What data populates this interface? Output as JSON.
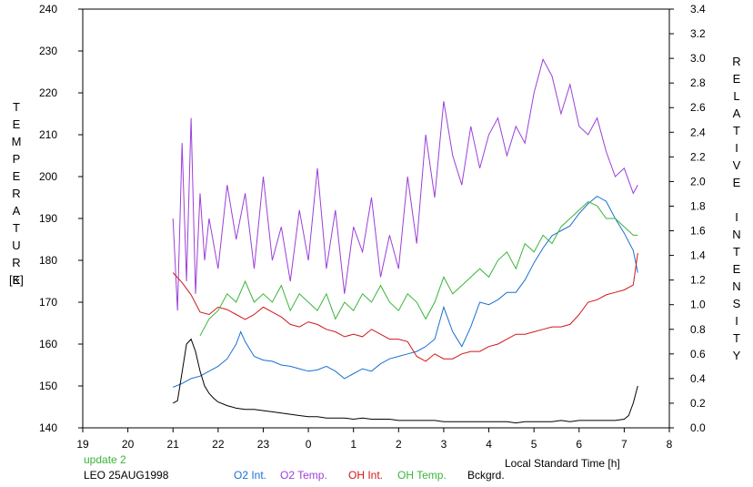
{
  "chart_data": {
    "type": "line",
    "xlabel": "Local Standard Time [h]",
    "ylabel_left": "TEMPERATURE",
    "ylabel_left_unit": "[K]",
    "ylabel_right": "RELATIVE INTENSITY",
    "x_ticks": [
      "19",
      "20",
      "21",
      "22",
      "23",
      "0",
      "1",
      "2",
      "3",
      "4",
      "5",
      "6",
      "7",
      "8"
    ],
    "xlim": [
      19,
      32
    ],
    "y_left_ticks": [
      "140",
      "150",
      "160",
      "170",
      "180",
      "190",
      "200",
      "210",
      "220",
      "230",
      "240"
    ],
    "ylim_left": [
      140,
      240
    ],
    "y_right_ticks": [
      "0.0",
      "0.2",
      "0.4",
      "0.6",
      "0.8",
      "1.0",
      "1.2",
      "1.4",
      "1.6",
      "1.8",
      "2.0",
      "2.2",
      "2.4",
      "2.6",
      "2.8",
      "3.0",
      "3.2",
      "3.4"
    ],
    "ylim_right": [
      0,
      3.4
    ],
    "series": [
      {
        "name": "O2 Int.",
        "axis": "right",
        "color": "#1a6fd0",
        "x": [
          21.0,
          21.2,
          21.4,
          21.6,
          21.8,
          22.0,
          22.2,
          22.4,
          22.5,
          22.6,
          22.8,
          23.0,
          23.2,
          23.4,
          23.6,
          23.8,
          24.0,
          24.2,
          24.4,
          24.6,
          24.8,
          25.0,
          25.2,
          25.4,
          25.6,
          25.8,
          26.0,
          26.2,
          26.4,
          26.6,
          26.8,
          27.0,
          27.2,
          27.4,
          27.6,
          27.8,
          28.0,
          28.2,
          28.4,
          28.6,
          28.8,
          29.0,
          29.2,
          29.4,
          29.6,
          29.8,
          30.0,
          30.2,
          30.4,
          30.6,
          30.8,
          31.0,
          31.2,
          31.3
        ],
        "values": [
          0.33,
          0.36,
          0.4,
          0.42,
          0.46,
          0.5,
          0.56,
          0.68,
          0.78,
          0.7,
          0.58,
          0.55,
          0.54,
          0.51,
          0.5,
          0.48,
          0.46,
          0.47,
          0.5,
          0.46,
          0.4,
          0.44,
          0.48,
          0.46,
          0.52,
          0.56,
          0.58,
          0.6,
          0.62,
          0.66,
          0.72,
          0.98,
          0.78,
          0.66,
          0.82,
          1.02,
          1.0,
          1.04,
          1.1,
          1.1,
          1.2,
          1.34,
          1.46,
          1.56,
          1.6,
          1.64,
          1.74,
          1.82,
          1.88,
          1.84,
          1.7,
          1.58,
          1.44,
          1.26
        ]
      },
      {
        "name": "O2 Temp.",
        "axis": "left",
        "color": "#9b3fd8",
        "x": [
          21.0,
          21.1,
          21.2,
          21.3,
          21.4,
          21.5,
          21.6,
          21.7,
          21.8,
          22.0,
          22.2,
          22.4,
          22.6,
          22.8,
          23.0,
          23.2,
          23.4,
          23.6,
          23.8,
          24.0,
          24.2,
          24.4,
          24.6,
          24.8,
          25.0,
          25.2,
          25.4,
          25.6,
          25.8,
          26.0,
          26.2,
          26.4,
          26.6,
          26.8,
          27.0,
          27.2,
          27.4,
          27.6,
          27.8,
          28.0,
          28.2,
          28.4,
          28.6,
          28.8,
          29.0,
          29.2,
          29.4,
          29.6,
          29.8,
          30.0,
          30.2,
          30.4,
          30.6,
          30.8,
          31.0,
          31.2,
          31.3
        ],
        "values": [
          190,
          168,
          208,
          175,
          214,
          172,
          196,
          180,
          190,
          178,
          198,
          185,
          196,
          178,
          200,
          180,
          188,
          175,
          192,
          180,
          202,
          178,
          192,
          172,
          188,
          182,
          195,
          176,
          186,
          178,
          200,
          184,
          210,
          195,
          218,
          205,
          198,
          212,
          202,
          210,
          214,
          205,
          212,
          208,
          220,
          228,
          224,
          215,
          222,
          212,
          210,
          214,
          206,
          200,
          202,
          196,
          198
        ]
      },
      {
        "name": "OH Int.",
        "axis": "right",
        "color": "#d01818",
        "x": [
          21.0,
          21.2,
          21.4,
          21.6,
          21.8,
          22.0,
          22.2,
          22.4,
          22.6,
          22.8,
          23.0,
          23.2,
          23.4,
          23.6,
          23.8,
          24.0,
          24.2,
          24.4,
          24.6,
          24.8,
          25.0,
          25.2,
          25.4,
          25.6,
          25.8,
          26.0,
          26.2,
          26.4,
          26.6,
          26.8,
          27.0,
          27.2,
          27.4,
          27.6,
          27.8,
          28.0,
          28.2,
          28.4,
          28.6,
          28.8,
          29.0,
          29.2,
          29.4,
          29.6,
          29.8,
          30.0,
          30.2,
          30.4,
          30.6,
          30.8,
          31.0,
          31.2,
          31.3
        ],
        "values": [
          1.26,
          1.18,
          1.08,
          0.94,
          0.92,
          0.98,
          0.96,
          0.92,
          0.88,
          0.92,
          0.98,
          0.94,
          0.9,
          0.84,
          0.82,
          0.86,
          0.84,
          0.8,
          0.78,
          0.74,
          0.76,
          0.74,
          0.8,
          0.76,
          0.72,
          0.72,
          0.7,
          0.58,
          0.54,
          0.6,
          0.56,
          0.56,
          0.6,
          0.62,
          0.62,
          0.66,
          0.68,
          0.72,
          0.76,
          0.76,
          0.78,
          0.8,
          0.82,
          0.82,
          0.84,
          0.92,
          1.02,
          1.04,
          1.08,
          1.1,
          1.12,
          1.16,
          1.42
        ]
      },
      {
        "name": "OH Temp.",
        "axis": "left",
        "color": "#3ab43a",
        "x": [
          21.6,
          21.8,
          22.0,
          22.2,
          22.4,
          22.6,
          22.8,
          23.0,
          23.2,
          23.4,
          23.6,
          23.8,
          24.0,
          24.2,
          24.4,
          24.6,
          24.8,
          25.0,
          25.2,
          25.4,
          25.6,
          25.8,
          26.0,
          26.2,
          26.4,
          26.6,
          26.8,
          27.0,
          27.2,
          27.4,
          27.6,
          27.8,
          28.0,
          28.2,
          28.4,
          28.6,
          28.8,
          29.0,
          29.2,
          29.4,
          29.6,
          29.8,
          30.0,
          30.2,
          30.4,
          30.6,
          30.8,
          31.0,
          31.2,
          31.3
        ],
        "values": [
          162,
          166,
          168,
          172,
          170,
          175,
          170,
          172,
          170,
          174,
          168,
          172,
          170,
          168,
          172,
          166,
          170,
          168,
          172,
          170,
          174,
          170,
          168,
          172,
          170,
          166,
          170,
          176,
          172,
          174,
          176,
          178,
          176,
          180,
          182,
          178,
          184,
          182,
          186,
          184,
          188,
          190,
          192,
          194,
          193,
          190,
          190,
          188,
          186,
          186
        ]
      },
      {
        "name": "Bckgrd.",
        "axis": "right",
        "color": "#000000",
        "x": [
          21.0,
          21.1,
          21.2,
          21.3,
          21.4,
          21.5,
          21.6,
          21.7,
          21.8,
          21.9,
          22.0,
          22.2,
          22.4,
          22.6,
          22.8,
          23.0,
          23.2,
          23.4,
          23.6,
          23.8,
          24.0,
          24.2,
          24.4,
          24.6,
          24.8,
          25.0,
          25.2,
          25.4,
          25.6,
          25.8,
          26.0,
          26.2,
          26.4,
          26.6,
          26.8,
          27.0,
          27.2,
          27.4,
          27.6,
          27.8,
          28.0,
          28.2,
          28.4,
          28.6,
          28.8,
          29.0,
          29.2,
          29.4,
          29.6,
          29.8,
          30.0,
          30.2,
          30.4,
          30.6,
          30.8,
          31.0,
          31.1,
          31.2,
          31.3
        ],
        "values": [
          0.2,
          0.22,
          0.45,
          0.68,
          0.72,
          0.62,
          0.46,
          0.34,
          0.28,
          0.24,
          0.21,
          0.18,
          0.16,
          0.15,
          0.15,
          0.14,
          0.13,
          0.12,
          0.11,
          0.1,
          0.09,
          0.09,
          0.08,
          0.08,
          0.08,
          0.07,
          0.08,
          0.07,
          0.07,
          0.07,
          0.06,
          0.06,
          0.06,
          0.06,
          0.06,
          0.05,
          0.05,
          0.05,
          0.05,
          0.05,
          0.05,
          0.05,
          0.05,
          0.04,
          0.05,
          0.05,
          0.05,
          0.05,
          0.06,
          0.05,
          0.06,
          0.06,
          0.06,
          0.06,
          0.06,
          0.07,
          0.1,
          0.2,
          0.34
        ]
      }
    ],
    "annotations": [
      "update 2",
      "LEO 25AUG1998"
    ],
    "grid": false,
    "legend_position": "bottom"
  },
  "labels": {
    "update": "update 2",
    "station_date": "LEO 25AUG1998",
    "xlabel": "Local Standard Time [h]",
    "ylabel_left_unit": "[K]"
  },
  "legend": [
    {
      "label": "O2 Int.",
      "color": "#1a6fd0"
    },
    {
      "label": "O2 Temp.",
      "color": "#9b3fd8"
    },
    {
      "label": "OH Int.",
      "color": "#d01818"
    },
    {
      "label": "OH Temp.",
      "color": "#3ab43a"
    },
    {
      "label": "Bckgrd.",
      "color": "#000000"
    }
  ]
}
